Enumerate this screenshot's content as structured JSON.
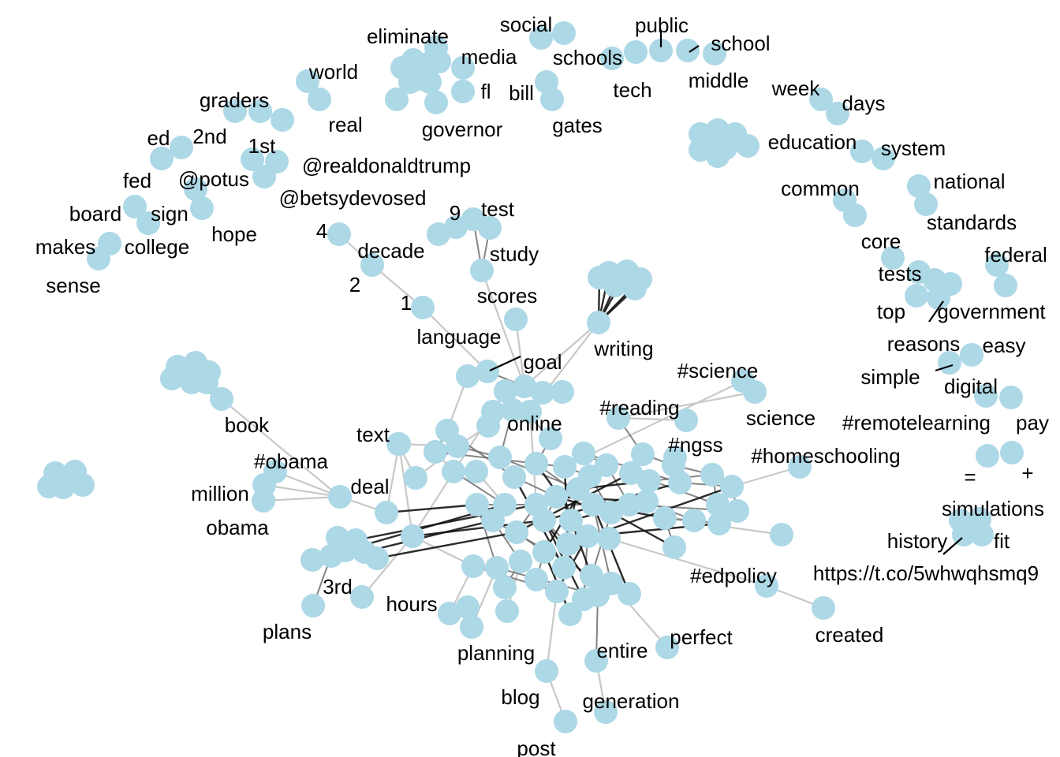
{
  "colors": {
    "node": "#add8e6",
    "edge_light": "#c8c8c8",
    "edge_mid": "#6e6e6e",
    "edge_dark": "#141414",
    "label": "#000000"
  },
  "labels": {
    "social": "social",
    "public": "public",
    "school": "school",
    "eliminate": "eliminate",
    "media": "media",
    "schools": "schools",
    "tech": "tech",
    "middle": "middle",
    "fl": "fl",
    "bill": "bill",
    "gates": "gates",
    "governor": "governor",
    "world": "world",
    "real": "real",
    "graders": "graders",
    "ed": "ed",
    "2nd": "2nd",
    "1st": "1st",
    "realdonaldtrump": "@realdonaldtrump",
    "fed": "fed",
    "potus": "@potus",
    "betsydevosed": "@betsydevosed",
    "board": "board",
    "sign": "sign",
    "hope": "hope",
    "makes": "makes",
    "college": "college",
    "sense": "sense",
    "week": "week",
    "days": "days",
    "education": "education",
    "system": "system",
    "common": "common",
    "national": "national",
    "standards": "standards",
    "core": "core",
    "federal": "federal",
    "tests": "tests",
    "top": "top",
    "government": "government",
    "reasons": "reasons",
    "easy": "easy",
    "simple": "simple",
    "digital": "digital",
    "remotelearning": "#remotelearning",
    "pay": "pay",
    "equals": "=",
    "plus": "+",
    "simulations": "simulations",
    "history": "history",
    "fit": "fit",
    "url": "https://t.co/5whwqhsmq9",
    "n9": "9",
    "test": "test",
    "n4": "4",
    "decade": "decade",
    "study": "study",
    "n2": "2",
    "n1": "1",
    "scores": "scores",
    "language": "language",
    "goal": "goal",
    "writing": "writing",
    "science_tag": "#science",
    "reading": "#reading",
    "science": "science",
    "online": "online",
    "text": "text",
    "book": "book",
    "ngss": "#ngss",
    "homeschooling": "#homeschooling",
    "obama_tag": "#obama",
    "deal": "deal",
    "million": "million",
    "obama": "obama",
    "edpolicy": "#edpolicy",
    "third": "3rd",
    "hours": "hours",
    "plans": "plans",
    "perfect": "perfect",
    "created": "created",
    "entire": "entire",
    "planning": "planning",
    "blog": "blog",
    "generation": "generation",
    "post": "post"
  }
}
